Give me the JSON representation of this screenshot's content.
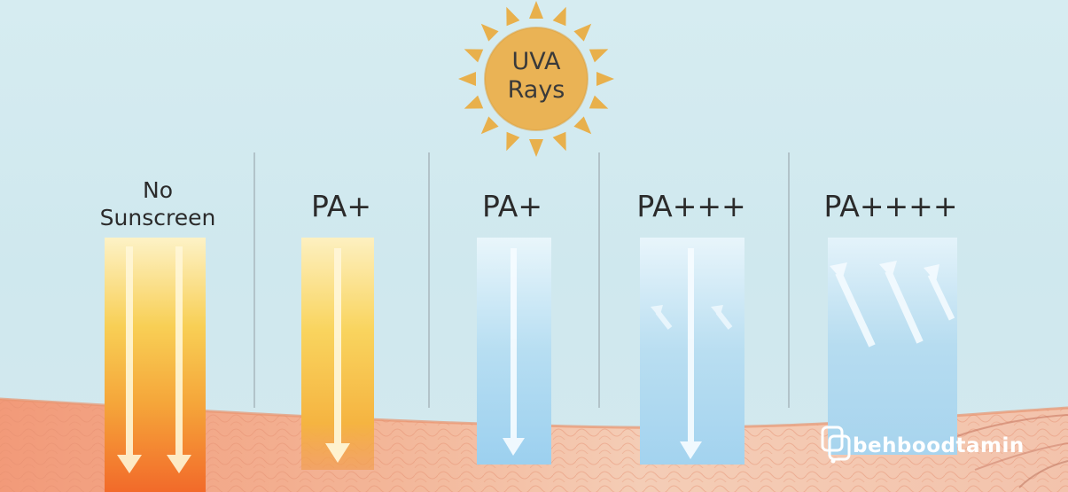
{
  "sun": {
    "line1": "UVA",
    "line2": "Rays",
    "color": "#e8b04c"
  },
  "columns": [
    {
      "label_line1": "No",
      "label_line2": "Sunscreen"
    },
    {
      "label": "PA+"
    },
    {
      "label": "PA+"
    },
    {
      "label": "PA+++"
    },
    {
      "label": "PA++++"
    }
  ],
  "logo": {
    "text": "behboodtamin"
  },
  "colors": {
    "sky": "#d3e9ee",
    "skin": "#f2a98c",
    "ray_warm": "#f7c84d",
    "ray_cool": "#a9d8f0"
  }
}
